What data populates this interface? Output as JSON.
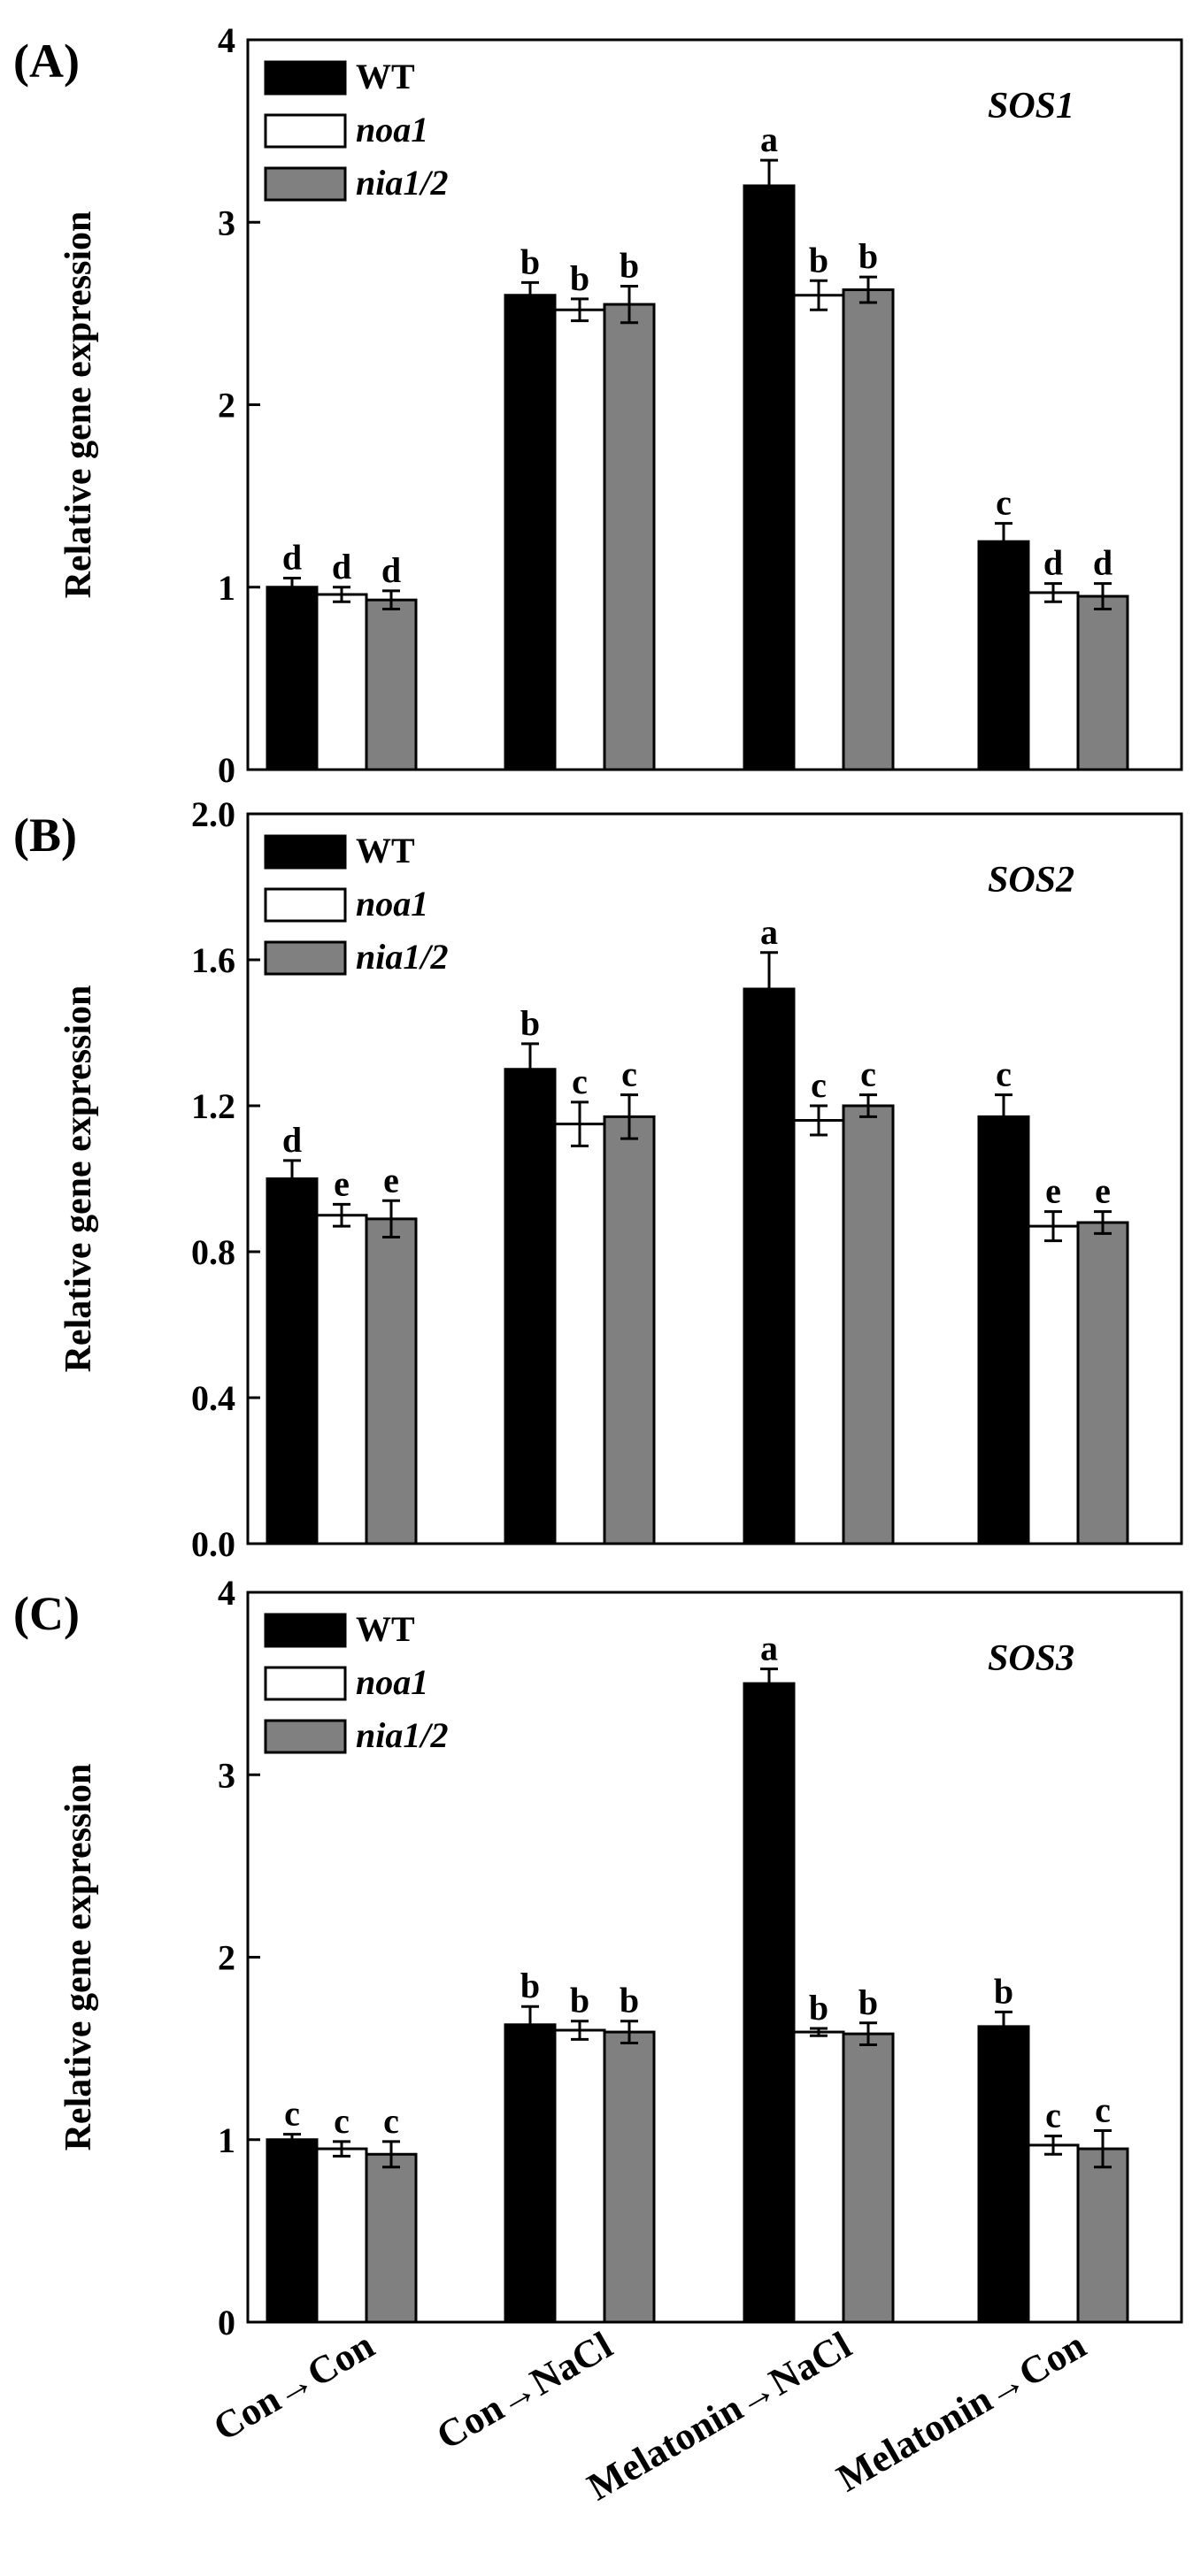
{
  "figure": {
    "categories": [
      "Con→Con",
      "Con→NaCl",
      "Melatonin→NaCl",
      "Melatonin→Con"
    ]
  },
  "chart_data": [
    {
      "type": "bar",
      "panel_label": "(A)",
      "gene": "SOS1",
      "title": "SOS1",
      "xlabel": "",
      "ylabel": "Relative gene expression",
      "ylim": [
        0,
        4
      ],
      "yticks": [
        0,
        1,
        2,
        3,
        4
      ],
      "ytick_labels": [
        "0",
        "1",
        "2",
        "3",
        "4"
      ],
      "categories": [
        "Con→Con",
        "Con→NaCl",
        "Melatonin→NaCl",
        "Melatonin→Con"
      ],
      "legend_position": "top-left",
      "series": [
        {
          "name": "WT",
          "color": "#000000",
          "values": [
            1.0,
            2.6,
            3.2,
            1.25
          ],
          "errors": [
            0.05,
            0.07,
            0.14,
            0.1
          ],
          "letters": [
            "d",
            "b",
            "a",
            "c"
          ]
        },
        {
          "name": "noa1",
          "color": "#ffffff",
          "values": [
            0.96,
            2.52,
            2.6,
            0.97
          ],
          "errors": [
            0.04,
            0.06,
            0.08,
            0.05
          ],
          "letters": [
            "d",
            "b",
            "b",
            "d"
          ]
        },
        {
          "name": "nia1/2",
          "color": "#808080",
          "values": [
            0.93,
            2.55,
            2.63,
            0.95
          ],
          "errors": [
            0.05,
            0.1,
            0.07,
            0.07
          ],
          "letters": [
            "d",
            "b",
            "b",
            "d"
          ]
        }
      ]
    },
    {
      "type": "bar",
      "panel_label": "(B)",
      "gene": "SOS2",
      "title": "SOS2",
      "xlabel": "",
      "ylabel": "Relative gene expression",
      "ylim": [
        0,
        2
      ],
      "yticks": [
        0,
        0.4,
        0.8,
        1.2,
        1.6,
        2.0
      ],
      "ytick_labels": [
        "0.0",
        "0.4",
        "0.8",
        "1.2",
        "1.6",
        "2.0"
      ],
      "categories": [
        "Con→Con",
        "Con→NaCl",
        "Melatonin→NaCl",
        "Melatonin→Con"
      ],
      "legend_position": "top-left",
      "series": [
        {
          "name": "WT",
          "color": "#000000",
          "values": [
            1.0,
            1.3,
            1.52,
            1.17
          ],
          "errors": [
            0.05,
            0.07,
            0.1,
            0.06
          ],
          "letters": [
            "d",
            "b",
            "a",
            "c"
          ]
        },
        {
          "name": "noa1",
          "color": "#ffffff",
          "values": [
            0.9,
            1.15,
            1.16,
            0.87
          ],
          "errors": [
            0.03,
            0.06,
            0.04,
            0.04
          ],
          "letters": [
            "e",
            "c",
            "c",
            "e"
          ]
        },
        {
          "name": "nia1/2",
          "color": "#808080",
          "values": [
            0.89,
            1.17,
            1.2,
            0.88
          ],
          "errors": [
            0.05,
            0.06,
            0.03,
            0.03
          ],
          "letters": [
            "e",
            "c",
            "c",
            "e"
          ]
        }
      ]
    },
    {
      "type": "bar",
      "panel_label": "(C)",
      "gene": "SOS3",
      "title": "SOS3",
      "xlabel": "",
      "ylabel": "Relative gene expression",
      "ylim": [
        0,
        4
      ],
      "yticks": [
        0,
        1,
        2,
        3,
        4
      ],
      "ytick_labels": [
        "0",
        "1",
        "2",
        "3",
        "4"
      ],
      "categories": [
        "Con→Con",
        "Con→NaCl",
        "Melatonin→NaCl",
        "Melatonin→Con"
      ],
      "legend_position": "top-left",
      "series": [
        {
          "name": "WT",
          "color": "#000000",
          "values": [
            1.0,
            1.63,
            3.5,
            1.62
          ],
          "errors": [
            0.03,
            0.1,
            0.08,
            0.08
          ],
          "letters": [
            "c",
            "b",
            "a",
            "b"
          ]
        },
        {
          "name": "noa1",
          "color": "#ffffff",
          "values": [
            0.95,
            1.6,
            1.59,
            0.97
          ],
          "errors": [
            0.04,
            0.05,
            0.02,
            0.05
          ],
          "letters": [
            "c",
            "b",
            "b",
            "c"
          ]
        },
        {
          "name": "nia1/2",
          "color": "#808080",
          "values": [
            0.92,
            1.59,
            1.58,
            0.95
          ],
          "errors": [
            0.07,
            0.06,
            0.06,
            0.1
          ],
          "letters": [
            "c",
            "b",
            "b",
            "c"
          ]
        }
      ]
    }
  ]
}
